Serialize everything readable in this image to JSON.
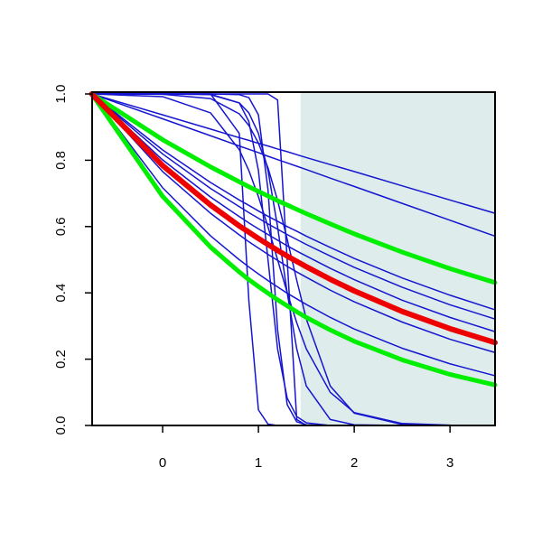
{
  "chart_data": {
    "type": "line",
    "x": [
      -0.74,
      0,
      0.5,
      0.8,
      0.9,
      1,
      1.1,
      1.2,
      1.3,
      1.4,
      1.5,
      1.75,
      2,
      2.5,
      3,
      3.47
    ],
    "xlim": [
      -0.736,
      3.47
    ],
    "ylim": [
      0,
      1
    ],
    "xticks": [
      0,
      1,
      2,
      3
    ],
    "yticks": [
      {
        "value": 0,
        "label": "0.0"
      },
      0.2,
      0.4,
      0.6,
      0.8,
      {
        "value": 1,
        "label": "1.0"
      }
    ],
    "shade": {
      "xmin": 1.44,
      "color": "#deeceb"
    },
    "series": [
      {
        "color": "#1515d0",
        "linewidth": 1.5,
        "values": [
          1,
          0.937,
          0.894,
          0.868,
          0.86,
          0.851,
          0.843,
          0.834,
          0.826,
          0.817,
          0.808,
          0.787,
          0.766,
          0.723,
          0.68,
          0.64
        ]
      },
      {
        "color": "#1515d0",
        "linewidth": 1.5,
        "values": [
          1,
          0.925,
          0.874,
          0.843,
          0.833,
          0.823,
          0.812,
          0.802,
          0.792,
          0.782,
          0.772,
          0.746,
          0.721,
          0.67,
          0.619,
          0.571
        ]
      },
      {
        "color": "#1515d0",
        "linewidth": 1.5,
        "values": [
          1,
          0.831,
          0.733,
          0.68,
          0.664,
          0.647,
          0.631,
          0.616,
          0.6,
          0.586,
          0.571,
          0.537,
          0.504,
          0.445,
          0.393,
          0.349
        ]
      },
      {
        "color": "#1515d0",
        "linewidth": 1.5,
        "values": [
          1,
          0.819,
          0.715,
          0.66,
          0.642,
          0.625,
          0.608,
          0.592,
          0.576,
          0.561,
          0.546,
          0.511,
          0.477,
          0.417,
          0.364,
          0.321
        ]
      },
      {
        "color": "#1515d0",
        "linewidth": 1.5,
        "values": [
          1,
          0.801,
          0.689,
          0.63,
          0.611,
          0.593,
          0.576,
          0.559,
          0.542,
          0.526,
          0.511,
          0.474,
          0.44,
          0.378,
          0.326,
          0.283
        ]
      },
      {
        "color": "#1515d0",
        "linewidth": 1.5,
        "values": [
          1,
          0.766,
          0.64,
          0.575,
          0.554,
          0.535,
          0.516,
          0.498,
          0.48,
          0.463,
          0.447,
          0.408,
          0.373,
          0.312,
          0.26,
          0.22
        ]
      },
      {
        "color": "#1515d0",
        "linewidth": 1.5,
        "values": [
          1,
          0.717,
          0.572,
          0.5,
          0.478,
          0.457,
          0.437,
          0.418,
          0.399,
          0.382,
          0.365,
          0.326,
          0.291,
          0.233,
          0.186,
          0.15
        ]
      },
      {
        "color": "#1515d0",
        "linewidth": 1.5,
        "values": [
          1,
          1,
          1,
          0.881,
          0.377,
          0.047,
          0.004,
          0,
          0,
          0,
          0,
          0,
          0,
          0,
          0,
          0
        ]
      },
      {
        "color": "#1515d0",
        "linewidth": 1.5,
        "values": [
          1,
          1,
          1,
          1,
          1,
          1,
          1,
          0.982,
          0.5,
          0.018,
          0,
          0,
          0,
          0,
          0,
          0
        ]
      },
      {
        "color": "#1515d0",
        "linewidth": 1.5,
        "values": [
          1,
          1,
          0.999,
          0.973,
          0.917,
          0.769,
          0.5,
          0.231,
          0.083,
          0.027,
          0.008,
          0,
          0,
          0,
          0,
          0
        ]
      },
      {
        "color": "#1515d0",
        "linewidth": 1.5,
        "values": [
          1,
          1,
          0.998,
          0.973,
          0.943,
          0.881,
          0.769,
          0.599,
          0.401,
          0.231,
          0.119,
          0.018,
          0.002,
          0,
          0,
          0
        ]
      },
      {
        "color": "#1515d0",
        "linewidth": 1.5,
        "values": [
          1,
          0.999,
          0.986,
          0.94,
          0.905,
          0.852,
          0.777,
          0.679,
          0.562,
          0.438,
          0.321,
          0.119,
          0.037,
          0.003,
          0,
          0
        ]
      },
      {
        "color": "#1515d0",
        "linewidth": 1.5,
        "values": [
          1,
          0.992,
          0.943,
          0.832,
          0.769,
          0.69,
          0.599,
          0.5,
          0.401,
          0.31,
          0.231,
          0.1,
          0.039,
          0.006,
          0.001,
          0
        ]
      },
      {
        "color": "#1515d0",
        "linewidth": 1.5,
        "values": [
          1,
          1,
          1,
          0.998,
          0.989,
          0.937,
          0.711,
          0.289,
          0.063,
          0.011,
          0.002,
          0,
          0,
          0,
          0,
          0
        ]
      },
      {
        "color": "#00ee00",
        "linewidth": 5,
        "values": [
          1,
          0.862,
          0.78,
          0.735,
          0.72,
          0.706,
          0.692,
          0.678,
          0.665,
          0.652,
          0.639,
          0.608,
          0.578,
          0.523,
          0.473,
          0.431
        ]
      },
      {
        "color": "#00ee00",
        "linewidth": 5,
        "values": [
          1,
          0.691,
          0.538,
          0.463,
          0.44,
          0.419,
          0.399,
          0.379,
          0.361,
          0.343,
          0.326,
          0.288,
          0.254,
          0.198,
          0.154,
          0.122
        ]
      },
      {
        "color": "#ee0000",
        "linewidth": 6,
        "values": [
          1,
          0.784,
          0.665,
          0.602,
          0.583,
          0.564,
          0.546,
          0.528,
          0.511,
          0.495,
          0.479,
          0.441,
          0.406,
          0.344,
          0.292,
          0.25
        ]
      }
    ]
  }
}
